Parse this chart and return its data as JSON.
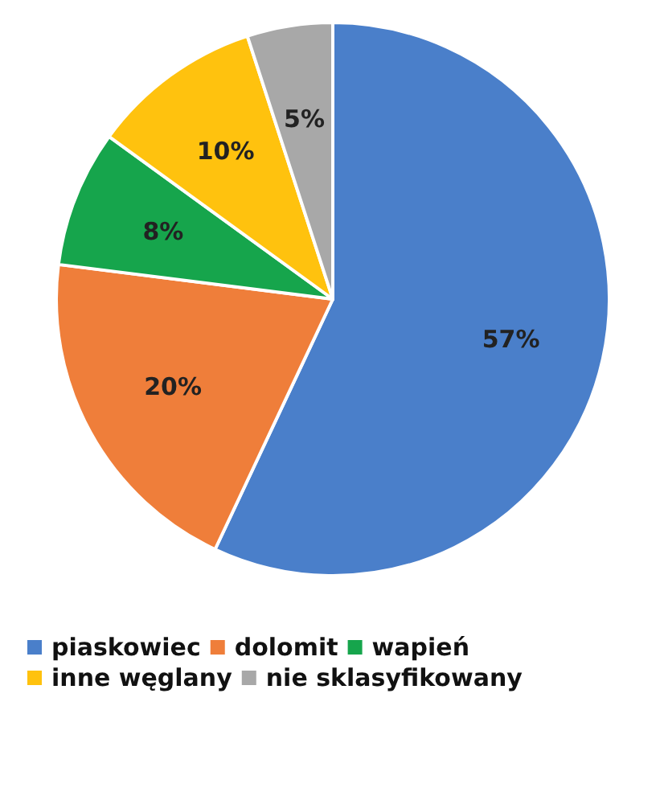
{
  "chart_data": {
    "type": "pie",
    "categories": [
      "piaskowiec",
      "dolomit",
      "wapień",
      "inne węglany",
      "nie sklasyfikowany"
    ],
    "values": [
      57,
      20,
      8,
      10,
      5
    ],
    "colors": [
      "#4a7fca",
      "#ef7e3a",
      "#16a54c",
      "#ffc20e",
      "#a8a8a8"
    ],
    "value_labels": [
      "57%",
      "20%",
      "8%",
      "10%",
      "5%"
    ],
    "legend": "bottom"
  }
}
